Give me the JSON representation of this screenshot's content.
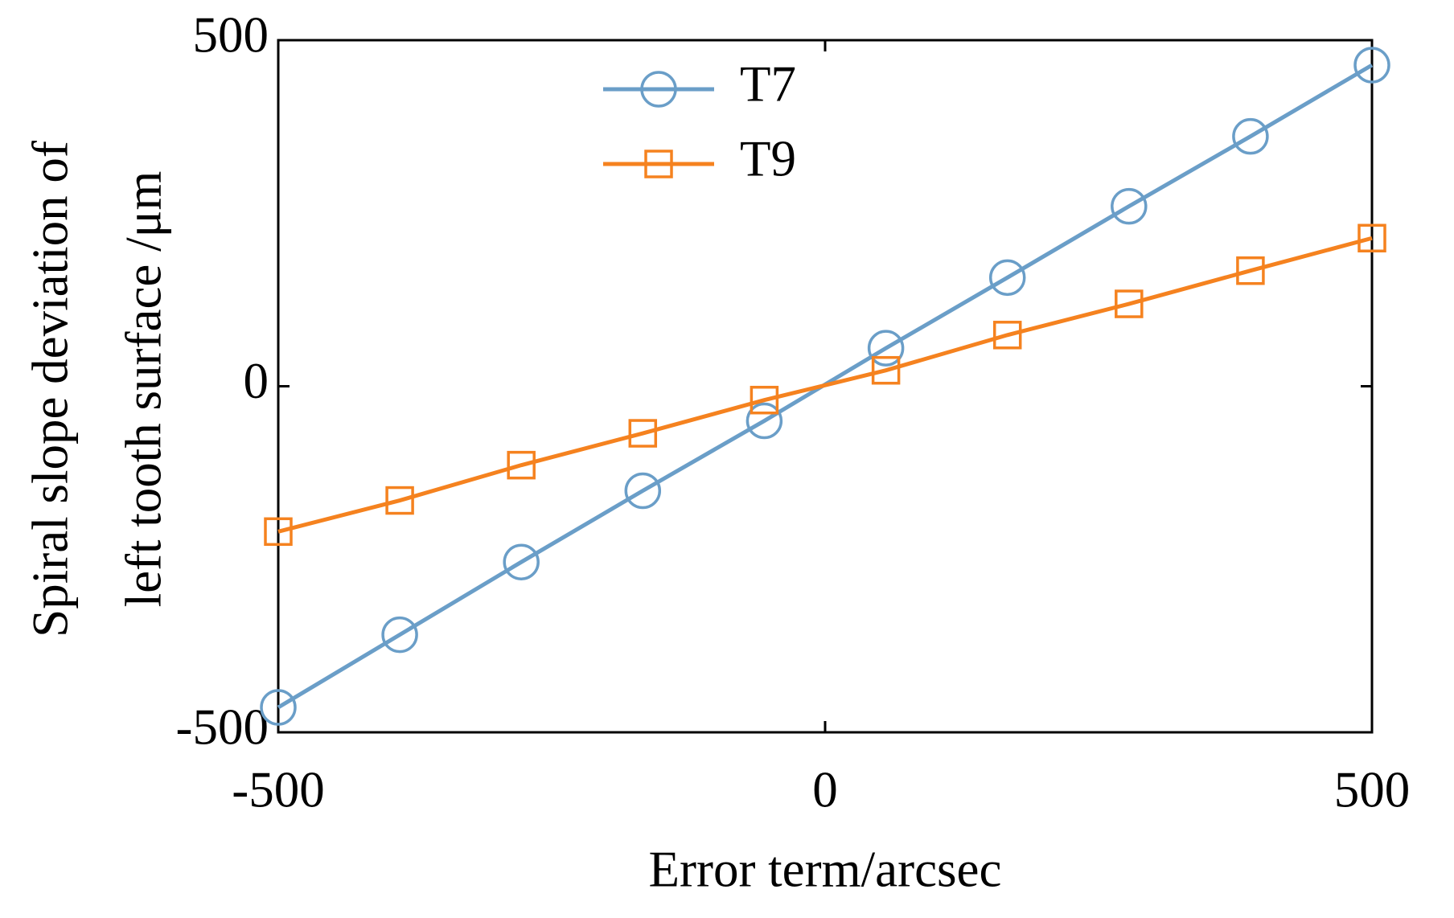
{
  "chart_data": {
    "type": "line",
    "x_label": "Error term/arcsec",
    "y_label": [
      "Spiral slope deviation  of",
      "left tooth surface /μm"
    ],
    "x": [
      -500,
      -388.9,
      -277.8,
      -166.7,
      -55.6,
      55.6,
      166.7,
      277.8,
      388.9,
      500
    ],
    "series": [
      {
        "name": "T7",
        "color": "#6a9ec8",
        "marker": "circle",
        "values": [
          -464,
          -359,
          -254,
          -151,
          -50,
          55,
          157,
          260,
          361,
          464
        ]
      },
      {
        "name": "T9",
        "color": "#f5821f",
        "marker": "square",
        "values": [
          -210,
          -165,
          -114,
          -68,
          -20,
          23,
          74,
          119,
          167,
          214
        ]
      }
    ],
    "xlim": [
      -500,
      500
    ],
    "xticks": [
      -500,
      0,
      500
    ],
    "ylim": [
      -500,
      500
    ],
    "yticks": [
      -500,
      0,
      500
    ],
    "grid": false,
    "legend": "top"
  }
}
